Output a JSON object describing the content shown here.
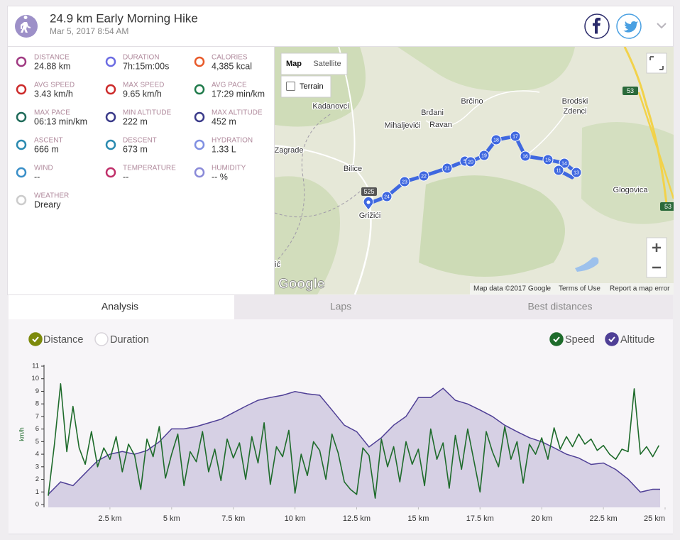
{
  "header": {
    "title": "24.9 km Early Morning Hike",
    "date": "Mar 5, 2017 8:54 AM"
  },
  "stats": [
    {
      "label": "DISTANCE",
      "value": "24.88 km"
    },
    {
      "label": "DURATION",
      "value": "7h:15m:00s"
    },
    {
      "label": "CALORIES",
      "value": "4,385 kcal"
    },
    {
      "label": "AVG SPEED",
      "value": "3.43 km/h"
    },
    {
      "label": "MAX SPEED",
      "value": "9.65 km/h"
    },
    {
      "label": "AVG PACE",
      "value": "17:29 min/km"
    },
    {
      "label": "MAX PACE",
      "value": "06:13 min/km"
    },
    {
      "label": "MIN ALTITUDE",
      "value": "222 m"
    },
    {
      "label": "MAX ALTITUDE",
      "value": "452 m"
    },
    {
      "label": "ASCENT",
      "value": "666 m"
    },
    {
      "label": "DESCENT",
      "value": "673 m"
    },
    {
      "label": "HYDRATION",
      "value": "1.33 L"
    },
    {
      "label": "WIND",
      "value": "--"
    },
    {
      "label": "TEMPERATURE",
      "value": "--"
    },
    {
      "label": "HUMIDITY",
      "value": "-- %"
    },
    {
      "label": "WEATHER",
      "value": "Dreary"
    }
  ],
  "map": {
    "buttons": [
      "Map",
      "Satellite"
    ],
    "terrain": "Terrain",
    "places": [
      "Kadanovci",
      "Brđani",
      "Ravan",
      "Brčino",
      "Mihaljevići",
      "Brodski",
      "Zdenci",
      "Zagrade",
      "Bilice",
      "Grižići",
      "Glogovica",
      "ić"
    ],
    "roads": [
      "525",
      "53",
      "53"
    ],
    "markers": [
      "24",
      "23",
      "22",
      "21",
      "5",
      "20",
      "19",
      "18",
      "17",
      "16",
      "15",
      "14",
      "11",
      "13"
    ],
    "logo": "Google",
    "attribution": "Map data ©2017 Google",
    "terms": "Terms of Use",
    "report": "Report a map error"
  },
  "tabs": {
    "labels": [
      "Analysis",
      "Laps",
      "Best distances"
    ],
    "active": 0
  },
  "chart_data": {
    "type": "line",
    "x_modes": [
      {
        "name": "Distance",
        "checked": true,
        "color": "#7d8a0c"
      },
      {
        "name": "Duration",
        "checked": false
      }
    ],
    "ylabel": "km/h",
    "ylim": [
      0,
      11
    ],
    "yticks": [
      0,
      1,
      2,
      3,
      4,
      5,
      6,
      7,
      8,
      9,
      10,
      11
    ],
    "y2lim": [
      200,
      500
    ],
    "xlim": [
      0,
      25
    ],
    "xticks": [
      {
        "value": 2.5,
        "label": "2.5 km"
      },
      {
        "value": 5,
        "label": "5 km"
      },
      {
        "value": 7.5,
        "label": "7.5 km"
      },
      {
        "value": 10,
        "label": "10 km"
      },
      {
        "value": 12.5,
        "label": "12.5 km"
      },
      {
        "value": 15,
        "label": "15 km"
      },
      {
        "value": 17.5,
        "label": "17.5 km"
      },
      {
        "value": 20,
        "label": "20 km"
      },
      {
        "value": 22.5,
        "label": "22.5 km"
      },
      {
        "value": 25,
        "label": "25 km"
      }
    ],
    "series": [
      {
        "name": "Speed",
        "color": "#1e6b2b",
        "checked": true,
        "x": [
          0,
          0.25,
          0.5,
          0.75,
          1,
          1.25,
          1.5,
          1.75,
          2,
          2.25,
          2.5,
          2.75,
          3,
          3.25,
          3.5,
          3.75,
          4,
          4.25,
          4.5,
          4.75,
          5,
          5.25,
          5.5,
          5.75,
          6,
          6.25,
          6.5,
          6.75,
          7,
          7.25,
          7.5,
          7.75,
          8,
          8.25,
          8.5,
          8.75,
          9,
          9.25,
          9.5,
          9.75,
          10,
          10.25,
          10.5,
          10.75,
          11,
          11.25,
          11.5,
          11.75,
          12,
          12.25,
          12.5,
          12.75,
          13,
          13.25,
          13.5,
          13.75,
          14,
          14.25,
          14.5,
          14.75,
          15,
          15.25,
          15.5,
          15.75,
          16,
          16.25,
          16.5,
          16.75,
          17,
          17.25,
          17.5,
          17.75,
          18,
          18.25,
          18.5,
          18.75,
          19,
          19.25,
          19.5,
          19.75,
          20,
          20.25,
          20.5,
          20.75,
          21,
          21.25,
          21.5,
          21.75,
          22,
          22.25,
          22.5,
          22.75,
          23,
          23.25,
          23.5,
          23.75,
          24,
          24.25,
          24.5,
          24.75
        ],
        "values": [
          0.7,
          4.8,
          9.6,
          4.2,
          7.8,
          4.5,
          3.2,
          5.8,
          3,
          4.5,
          3.6,
          5.4,
          2.6,
          4.8,
          3.9,
          1.2,
          5.2,
          3.8,
          6.2,
          2.1,
          4,
          5.6,
          1.5,
          4.2,
          3.4,
          5.8,
          2.6,
          4.4,
          1.9,
          5.2,
          3.7,
          4.9,
          2,
          5.4,
          3.3,
          6.5,
          1.6,
          4.6,
          3.8,
          5.9,
          0.9,
          4,
          2.3,
          5,
          4.3,
          2,
          5.6,
          4.1,
          1.8,
          1.2,
          0.8,
          4.5,
          3.9,
          0.5,
          5.2,
          3,
          4.6,
          1.8,
          5,
          3.2,
          4.4,
          1.5,
          6,
          3.6,
          4.9,
          1.3,
          5.5,
          2.8,
          6,
          3.5,
          1,
          5.8,
          4.2,
          3,
          6.2,
          3.6,
          5,
          1.7,
          4.8,
          4,
          5.3,
          3.6,
          6.1,
          4.4,
          5.4,
          4.6,
          5.6,
          4.8,
          5.2,
          4.3,
          4.7,
          4,
          3.6,
          4.4,
          4.2,
          9.2,
          4,
          4.6,
          3.8,
          4.7
        ]
      },
      {
        "name": "Altitude",
        "color": "#4f3f96",
        "fill": "#d6d0e4",
        "axis": "y2",
        "checked": true,
        "x": [
          0,
          0.5,
          1,
          1.5,
          2,
          2.5,
          3,
          3.5,
          4,
          4.5,
          5,
          5.5,
          6,
          6.5,
          7,
          7.5,
          8,
          8.5,
          9,
          9.5,
          10,
          10.5,
          11,
          11.5,
          12,
          12.5,
          13,
          13.5,
          14,
          14.5,
          15,
          15.5,
          16,
          16.5,
          17,
          17.5,
          18,
          18.5,
          19,
          19.5,
          20,
          20.5,
          21,
          21.5,
          22,
          22.5,
          23,
          23.5,
          24,
          24.5,
          24.8
        ],
        "values": [
          222,
          249,
          241,
          268,
          295,
          309,
          315,
          309,
          317,
          336,
          364,
          364,
          369,
          377,
          385,
          399,
          413,
          426,
          432,
          437,
          445,
          440,
          437,
          405,
          372,
          358,
          325,
          345,
          372,
          391,
          432,
          432,
          452,
          426,
          418,
          405,
          391,
          372,
          358,
          345,
          336,
          323,
          309,
          301,
          287,
          290,
          276,
          255,
          227,
          233,
          233
        ]
      }
    ]
  }
}
